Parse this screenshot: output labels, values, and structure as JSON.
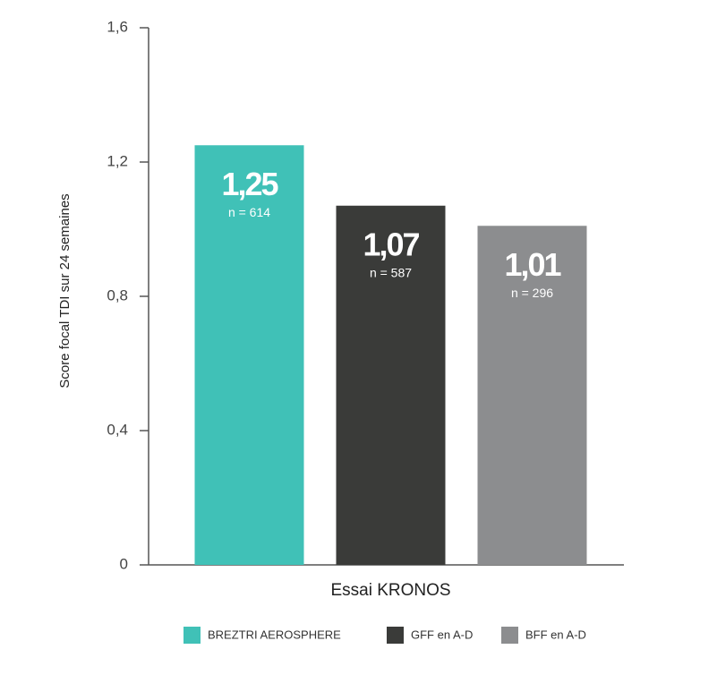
{
  "chart_data": {
    "type": "bar",
    "y_label": "Score focal TDI sur 24 semaines",
    "categories": [
      "Essai KRONOS"
    ],
    "series": [
      {
        "name": "BREZTRI AEROSPHERE",
        "color": "#40c1b7",
        "values": [
          1.25
        ],
        "value_labels": [
          "1,25"
        ],
        "n_labels": [
          "n = 614"
        ]
      },
      {
        "name": "GFF en A-D",
        "color": "#3a3b39",
        "values": [
          1.07
        ],
        "value_labels": [
          "1,07"
        ],
        "n_labels": [
          "n = 587"
        ]
      },
      {
        "name": "BFF en A-D",
        "color": "#8c8d8f",
        "values": [
          1.01
        ],
        "value_labels": [
          "1,01"
        ],
        "n_labels": [
          "n = 296"
        ]
      }
    ],
    "ylim": [
      0,
      1.6
    ],
    "yticks": [
      0,
      {
        "value": 0.4,
        "label": "0,4"
      },
      {
        "value": 0.8,
        "label": "0,8"
      },
      {
        "value": 1.2,
        "label": "1,2"
      },
      {
        "value": 1.6,
        "label": "1,6"
      }
    ],
    "legend": "bottom"
  }
}
